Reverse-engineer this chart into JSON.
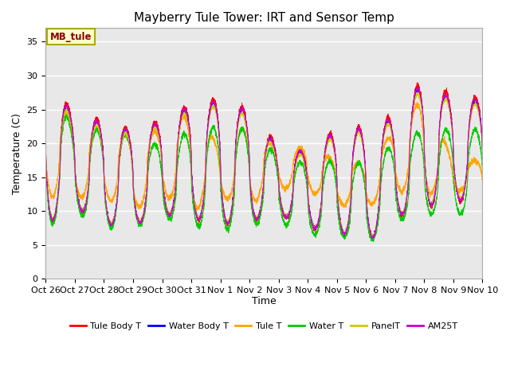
{
  "title": "Mayberry Tule Tower: IRT and Sensor Temp",
  "xlabel": "Time",
  "ylabel": "Temperature (C)",
  "annotation_text": "MB_tule",
  "ylim": [
    0,
    37
  ],
  "yticks": [
    0,
    5,
    10,
    15,
    20,
    25,
    30,
    35
  ],
  "x_tick_labels": [
    "Oct 26",
    "Oct 27",
    "Oct 28",
    "Oct 29",
    "Oct 30",
    "Oct 31",
    "Nov 1",
    "Nov 2",
    "Nov 3",
    "Nov 4",
    "Nov 5",
    "Nov 6",
    "Nov 7",
    "Nov 8",
    "Nov 9",
    "Nov 10"
  ],
  "legend_entries": [
    "Tule Body T",
    "Water Body T",
    "Tule T",
    "Water T",
    "PanelT",
    "AM25T"
  ],
  "line_colors": [
    "#ff0000",
    "#0000ff",
    "#ffa500",
    "#00cc00",
    "#cccc00",
    "#cc00cc"
  ],
  "background_color": "#e8e8e8",
  "grid_color": "#ffffff",
  "fig_bg": "#ffffff",
  "title_fontsize": 11,
  "label_fontsize": 9,
  "tick_fontsize": 8
}
